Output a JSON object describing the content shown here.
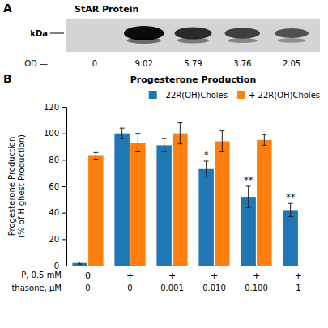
{
  "chart_data": [
    {
      "type": "blot",
      "title": "StAR Protein",
      "annotations": [
        "A",
        "kDa",
        "OD —"
      ],
      "categories": [
        null,
        null,
        null,
        null,
        null
      ],
      "values": [
        0,
        9.02,
        5.79,
        3.76,
        2.05
      ],
      "data_labels": true
    },
    {
      "type": "bar",
      "title": "Progesterone Production",
      "annotations": [
        "B"
      ],
      "ylabel": "Progesterone Production\n(% of Highest Production)",
      "xlabel": [
        "P, 0.5 mM",
        "thasone, μM"
      ],
      "categories": [
        [
          "0",
          "0"
        ],
        [
          "+",
          "0"
        ],
        [
          "+",
          "0.001"
        ],
        [
          "+",
          "0.010"
        ],
        [
          "+",
          "0.100"
        ],
        [
          "+",
          "1"
        ]
      ],
      "series": [
        {
          "name": "- 22R(OH)Choles",
          "values": [
            2,
            100,
            91,
            73,
            52,
            42
          ],
          "errors": [
            0.8,
            4,
            5,
            6,
            8,
            5
          ],
          "significance": [
            null,
            null,
            null,
            "*",
            "**",
            "**"
          ]
        },
        {
          "name": "+ 22R(OH)Choles",
          "values": [
            83,
            93,
            100,
            94,
            95,
            null
          ],
          "errors": [
            2.5,
            7,
            8,
            8,
            4,
            null
          ]
        }
      ],
      "ylim": [
        0,
        120
      ],
      "yticks": [
        0,
        20,
        40,
        60,
        80,
        100,
        120
      ],
      "grid": false,
      "legend": "upper right"
    }
  ]
}
